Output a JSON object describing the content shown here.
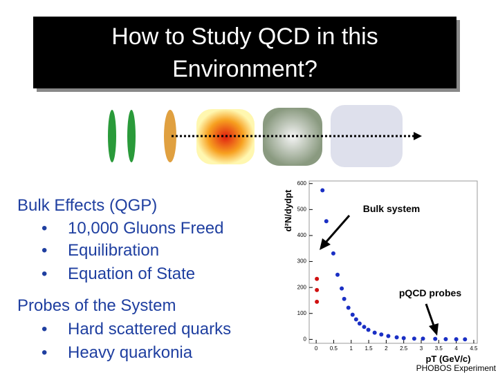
{
  "title": [
    "How to Study QCD in this",
    "Environment?"
  ],
  "sections": [
    {
      "heading": "Bulk Effects (QGP)",
      "items": [
        "10,000 Gluons Freed",
        "Equilibration",
        "Equation of State"
      ]
    },
    {
      "heading": "Probes of the System",
      "items": [
        "Hard scattered quarks",
        "Heavy quarkonia"
      ]
    }
  ],
  "credit": "PHOBOS Experiment",
  "chart_data": {
    "type": "scatter",
    "x_label": "pT (GeV/c)",
    "y_label": "d²N/dydpt",
    "annotations": [
      "Bulk system",
      "pQCD probes"
    ],
    "xlim": [
      -0.2,
      4.6
    ],
    "ylim": [
      -15,
      610
    ],
    "xticks": [
      0,
      0.5,
      1,
      1.5,
      2,
      2.5,
      3,
      3.5,
      4,
      4.5
    ],
    "yticks": [
      0,
      100,
      200,
      300,
      400,
      500,
      600
    ],
    "series": [
      {
        "color": "#1a2fc4",
        "x": [
          0.18,
          0.29,
          0.49,
          0.61,
          0.73,
          0.8,
          0.92,
          1.04,
          1.14,
          1.24,
          1.37,
          1.49,
          1.67,
          1.86,
          2.06,
          2.3,
          2.5,
          2.8,
          3.05,
          3.4,
          3.7,
          4.0,
          4.25
        ],
        "values": [
          574,
          455,
          331,
          249,
          196,
          156,
          122,
          95,
          77,
          61,
          48,
          37,
          26,
          19,
          13,
          8,
          5,
          3,
          3,
          2,
          1,
          0.5,
          0.3
        ]
      },
      {
        "color": "#d01010",
        "x": [
          0.02,
          0.02,
          0.02
        ],
        "values": [
          233,
          190,
          145
        ]
      }
    ]
  }
}
